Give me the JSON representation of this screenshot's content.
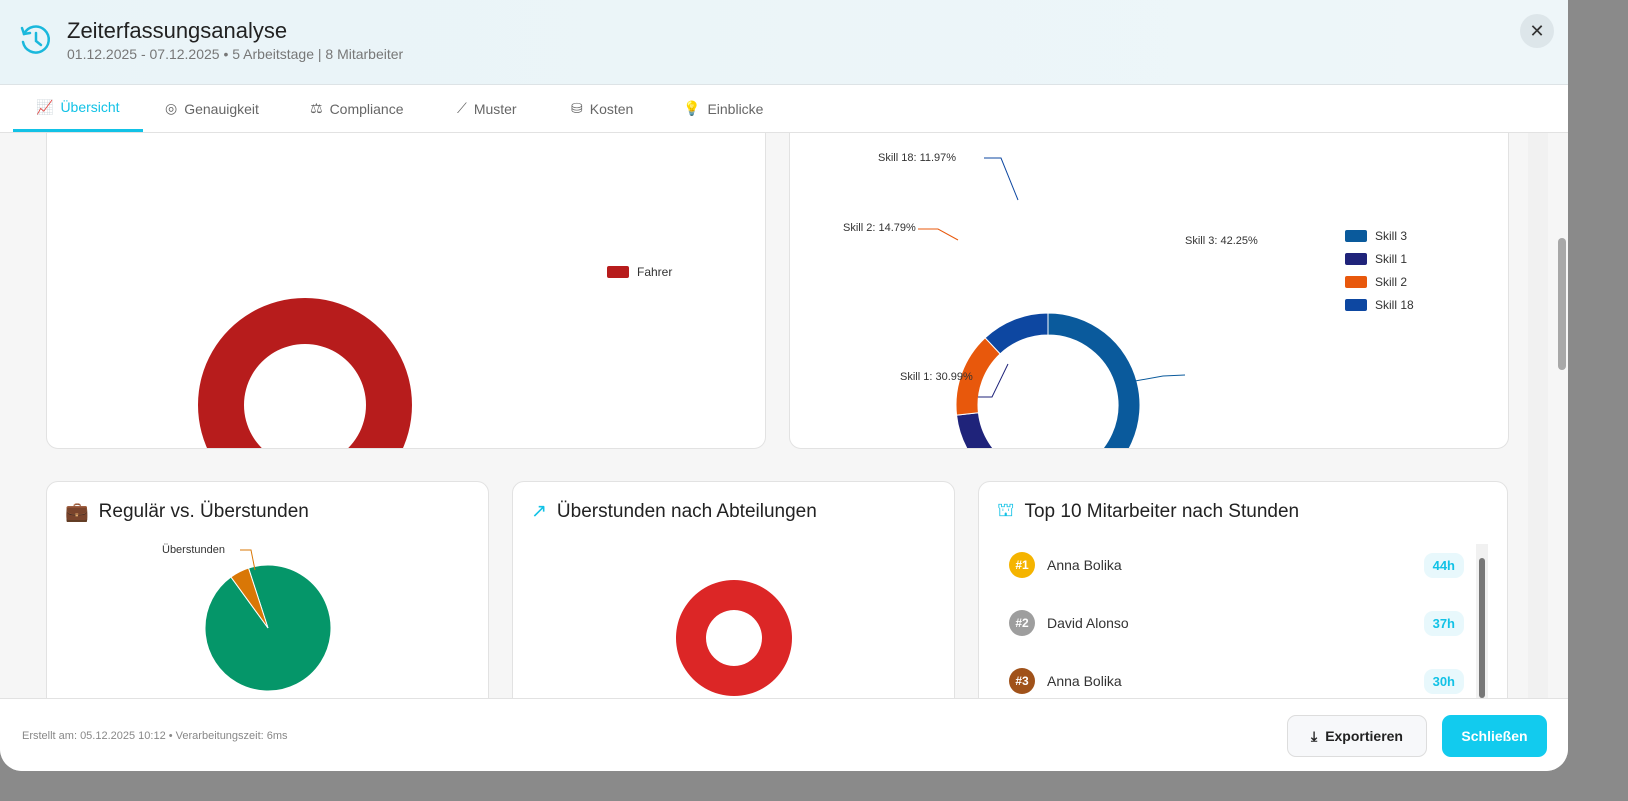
{
  "header": {
    "title": "Zeiterfassungsanalyse",
    "subtitle": "01.12.2025 - 07.12.2025 • 5 Arbeitstage | 8 Mitarbeiter",
    "close_label": "✕"
  },
  "tabs": [
    {
      "label": "Übersicht",
      "icon": "chart-area-icon",
      "active": true
    },
    {
      "label": "Genauigkeit",
      "icon": "target-icon"
    },
    {
      "label": "Compliance",
      "icon": "scale-icon"
    },
    {
      "label": "Muster",
      "icon": "line-chart-icon"
    },
    {
      "label": "Kosten",
      "icon": "coins-icon"
    },
    {
      "label": "Einblicke",
      "icon": "lightbulb-icon"
    }
  ],
  "chart_data": [
    {
      "type": "pie",
      "donut": true,
      "categories": [
        "Fahrer"
      ],
      "values": [
        100
      ],
      "colors": [
        "#b71c1c"
      ],
      "legend": "right"
    },
    {
      "type": "pie",
      "donut": true,
      "categories": [
        "Skill 3",
        "Skill 1",
        "Skill 2",
        "Skill 18"
      ],
      "values": [
        42.25,
        30.99,
        14.79,
        11.97
      ],
      "data_labels": [
        "Skill 3: 42.25%",
        "Skill 1: 30.99%",
        "Skill 2: 14.79%",
        "Skill 18: 11.97%"
      ],
      "colors": [
        "#0a5a9c",
        "#1f237a",
        "#e8580c",
        "#0d47a1"
      ],
      "legend": "right"
    },
    {
      "type": "pie",
      "title": "Regulär vs. Überstunden",
      "categories": [
        "Regulär",
        "Überstunden"
      ],
      "values": [
        95,
        5
      ],
      "data_labels": [
        "",
        "Überstunden"
      ],
      "colors": [
        "#059669",
        "#d97706"
      ]
    },
    {
      "type": "pie",
      "donut": true,
      "title": "Überstunden nach Abteilungen",
      "values": [
        100
      ],
      "colors": [
        "#dc2626"
      ]
    }
  ],
  "top10": {
    "title": "Top 10 Mitarbeiter nach Stunden",
    "items": [
      {
        "rank": "#1",
        "name": "Anna Bolika",
        "hours": "44h",
        "color": "#f5b400"
      },
      {
        "rank": "#2",
        "name": "David Alonso",
        "hours": "37h",
        "color": "#9e9e9e"
      },
      {
        "rank": "#3",
        "name": "Anna Bolika",
        "hours": "30h",
        "color": "#a0521a"
      }
    ]
  },
  "footer": {
    "text": "Erstellt am: 05.12.2025 10:12 • Verarbeitungszeit: 6ms",
    "export_label": "Exportieren",
    "close_label": "Schließen"
  }
}
